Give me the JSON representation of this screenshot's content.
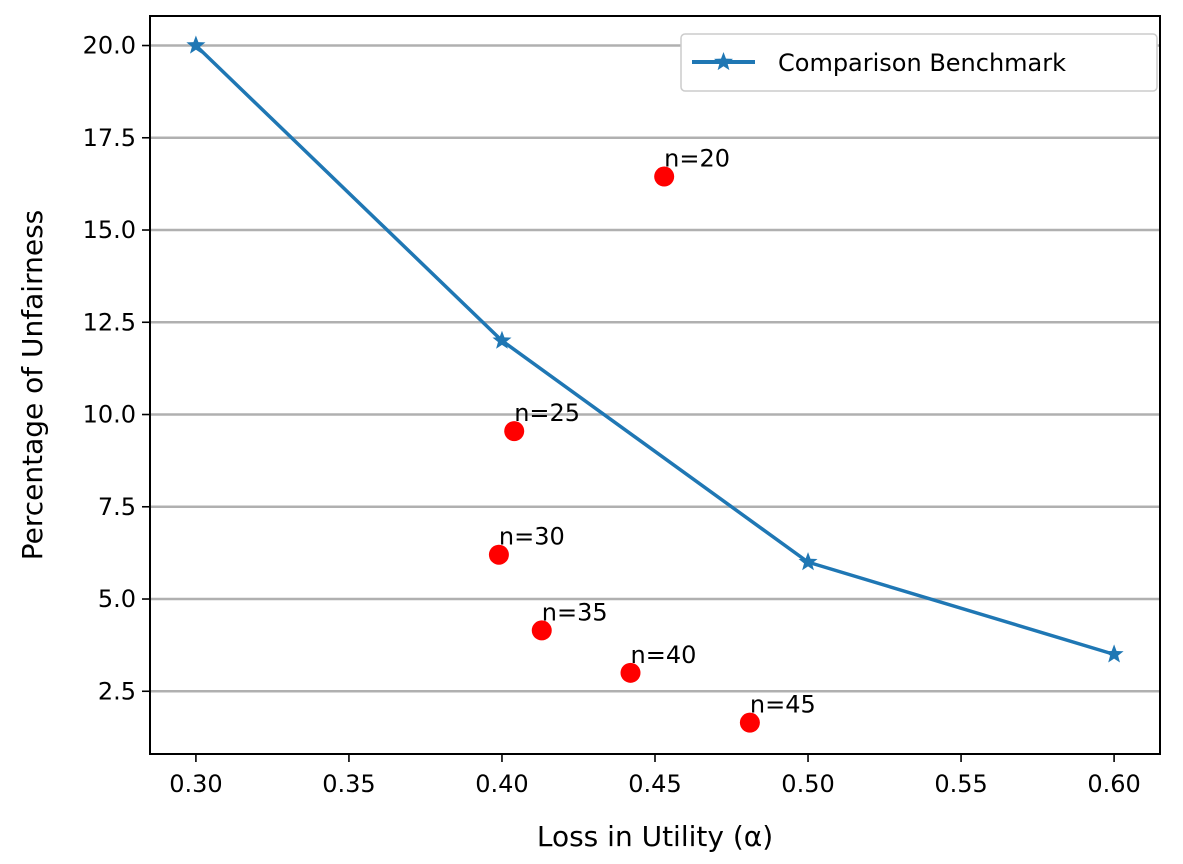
{
  "chart_data": {
    "type": "line",
    "xlabel": "Loss in Utility (α)",
    "ylabel": "Percentage of Unfairness",
    "xlim": [
      0.285,
      0.615
    ],
    "ylim": [
      0.8,
      20.8
    ],
    "xticks": [
      0.3,
      0.35,
      0.4,
      0.45,
      0.5,
      0.55,
      0.6
    ],
    "xtick_labels": [
      "0.30",
      "0.35",
      "0.40",
      "0.45",
      "0.50",
      "0.55",
      "0.60"
    ],
    "yticks": [
      2.5,
      5.0,
      7.5,
      10.0,
      12.5,
      15.0,
      17.5,
      20.0
    ],
    "ytick_labels": [
      "2.5",
      "5.0",
      "7.5",
      "10.0",
      "12.5",
      "15.0",
      "17.5",
      "20.0"
    ],
    "grid": "horizontal",
    "legend": {
      "placement": "top-right",
      "entries": [
        "Comparison Benchmark"
      ]
    },
    "series": [
      {
        "name": "Comparison Benchmark",
        "type": "line",
        "marker": "star",
        "color": "#1f77b4",
        "x": [
          0.3,
          0.4,
          0.5,
          0.6
        ],
        "y": [
          20.0,
          12.0,
          6.0,
          3.5
        ]
      }
    ],
    "points": {
      "type": "scatter",
      "color": "#ff0000",
      "items": [
        {
          "label": "n=20",
          "x": 0.453,
          "y": 16.45
        },
        {
          "label": "n=25",
          "x": 0.404,
          "y": 9.55
        },
        {
          "label": "n=30",
          "x": 0.399,
          "y": 6.2
        },
        {
          "label": "n=35",
          "x": 0.413,
          "y": 4.15
        },
        {
          "label": "n=40",
          "x": 0.442,
          "y": 3.0
        },
        {
          "label": "n=45",
          "x": 0.481,
          "y": 1.65
        }
      ]
    }
  }
}
